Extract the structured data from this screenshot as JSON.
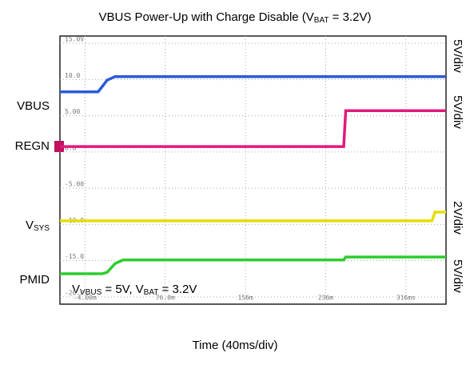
{
  "chart_data": {
    "type": "line",
    "title": [
      "VBUS Power-Up with Charge Disable (V",
      "BAT",
      " = 3.2V)"
    ],
    "xlabel": "Time (40ms/div)",
    "annotation": [
      "V",
      "VBUS",
      " = 5V, V",
      "BAT",
      " = 3.2V"
    ],
    "xlim": [
      -29,
      356
    ],
    "ylim": [
      -21,
      16
    ],
    "xticks": [
      {
        "value": -4,
        "label": "-4.00m"
      },
      {
        "value": 76,
        "label": "76.0m"
      },
      {
        "value": 156,
        "label": "156m"
      },
      {
        "value": 236,
        "label": "236m"
      },
      {
        "value": 316,
        "label": "316ms"
      }
    ],
    "yticks": [
      {
        "value": 15,
        "label": "15.0V"
      },
      {
        "value": 10,
        "label": "10.0"
      },
      {
        "value": 5,
        "label": "5.00"
      },
      {
        "value": 0,
        "label": "0.0"
      },
      {
        "value": -5,
        "label": "-5.00"
      },
      {
        "value": -10,
        "label": "-10.0"
      },
      {
        "value": -15,
        "label": "-15.0"
      },
      {
        "value": -20,
        "label": "-20.0"
      }
    ],
    "grid": true,
    "x": [
      -29,
      9,
      13,
      18,
      26,
      34,
      254,
      256,
      342,
      345,
      356
    ],
    "series": [
      {
        "name": [
          "VBUS"
        ],
        "scale": "5V/div",
        "color": "#2a5bd7",
        "values": [
          8.3,
          8.3,
          9.0,
          9.9,
          10.4,
          10.4,
          10.4,
          10.4,
          10.4,
          10.4,
          10.4
        ]
      },
      {
        "name": [
          "REGN"
        ],
        "scale": "5V/div",
        "color": "#e0197d",
        "values": [
          0.75,
          0.75,
          0.75,
          0.75,
          0.75,
          0.75,
          0.75,
          5.7,
          5.7,
          5.7,
          5.7
        ]
      },
      {
        "name": [
          "V",
          "SYS"
        ],
        "scale": "2V/div",
        "color": "#e3df00",
        "values": [
          -9.5,
          -9.5,
          -9.5,
          -9.5,
          -9.5,
          -9.5,
          -9.5,
          -9.5,
          -9.5,
          -8.3,
          -8.3
        ]
      },
      {
        "name": [
          "PMID"
        ],
        "scale": "5V/div",
        "color": "#2ecc2e",
        "values": [
          -16.8,
          -16.8,
          -16.8,
          -16.6,
          -15.4,
          -14.9,
          -14.9,
          -14.5,
          -14.5,
          -14.5,
          -14.5
        ]
      }
    ]
  }
}
